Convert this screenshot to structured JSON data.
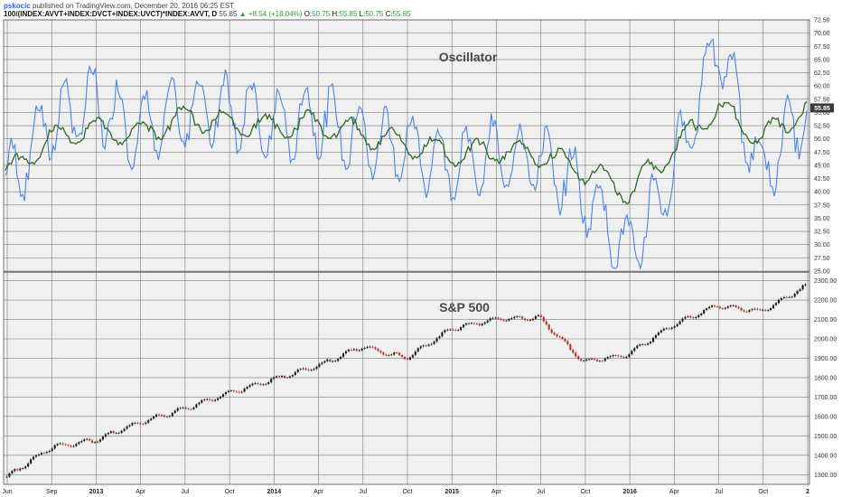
{
  "header": {
    "author": "pskocic",
    "published": "published on TradingView.com, December 20, 2016 06:25 EST",
    "symbol": "100/(INDEX:AVVT+INDEX:DVCT+INDEX:UVCT)*INDEX:AVVT, D",
    "last": "55.85",
    "change": "+8.54 (+18.04%)",
    "o_label": "O:",
    "o_value": "50.75",
    "h_label": "H:",
    "h_value": "55.85",
    "l_label": "L:",
    "l_value": "50.75",
    "c_label": "C:",
    "c_value": "55.85"
  },
  "colors": {
    "background": "#f0f0f0",
    "grid": "#7a7a7a",
    "oscillator": "#4a86e8",
    "average": "#2e6b1f",
    "candle_up": "#1a1a1a",
    "candle_down": "#b0301e",
    "price_badge": "#3a3a3a"
  },
  "chart_data": [
    {
      "type": "line",
      "title": "Oscillator",
      "ylim": [
        25,
        72.5
      ],
      "yticks": [
        "72.50",
        "70.00",
        "67.50",
        "65.00",
        "62.50",
        "60.00",
        "57.50",
        "55.00",
        "52.50",
        "50.00",
        "47.50",
        "45.00",
        "42.50",
        "40.00",
        "37.50",
        "35.00",
        "32.50",
        "30.00",
        "27.50",
        "25.00"
      ],
      "last_value_label": "55.85",
      "x": [
        "Jun 2012",
        "Sep 2012",
        "Jan 2013",
        "Apr 2013",
        "Jul 2013",
        "Oct 2013",
        "Jan 2014",
        "Apr 2014",
        "Jul 2014",
        "Oct 2014",
        "Jan 2015",
        "Apr 2015",
        "Jul 2015",
        "Oct 2015",
        "Jan 2016",
        "Apr 2016",
        "Jul 2016",
        "Oct 2016",
        "Dec 2016"
      ],
      "series": [
        {
          "values": [
            41,
            53,
            57,
            51,
            55,
            56,
            52,
            54,
            50,
            48,
            45,
            47,
            46,
            40,
            28,
            44,
            68,
            43,
            56
          ]
        },
        {
          "values": [
            43,
            50,
            52,
            51,
            54,
            53,
            52,
            53,
            51,
            49,
            47,
            48,
            47,
            44,
            40,
            48,
            56,
            50,
            56
          ]
        }
      ]
    },
    {
      "type": "line",
      "title": "S&P 500",
      "ylim": [
        1250,
        2340
      ],
      "yticks": [
        "2300.00",
        "2200.00",
        "2100.00",
        "2000.00",
        "1900.00",
        "1800.00",
        "1700.00",
        "1600.00",
        "1500.00",
        "1400.00",
        "1300.00"
      ],
      "x": [
        "Jun 2012",
        "Sep 2012",
        "Jan 2013",
        "Apr 2013",
        "Jul 2013",
        "Oct 2013",
        "Jan 2014",
        "Apr 2014",
        "Jul 2014",
        "Oct 2014",
        "Jan 2015",
        "Apr 2015",
        "Jul 2015",
        "Oct 2015",
        "Jan 2016",
        "Apr 2016",
        "Jul 2016",
        "Oct 2016",
        "Dec 2016"
      ],
      "values": [
        1290,
        1440,
        1480,
        1570,
        1640,
        1720,
        1790,
        1860,
        1960,
        1900,
        2050,
        2100,
        2110,
        1880,
        1920,
        2070,
        2170,
        2140,
        2270
      ]
    }
  ],
  "x_axis": {
    "labels": [
      {
        "text": "Jun",
        "bold": false
      },
      {
        "text": "Sep",
        "bold": false
      },
      {
        "text": "2013",
        "bold": true
      },
      {
        "text": "Apr",
        "bold": false
      },
      {
        "text": "Jul",
        "bold": false
      },
      {
        "text": "Oct",
        "bold": false
      },
      {
        "text": "2014",
        "bold": true
      },
      {
        "text": "Apr",
        "bold": false
      },
      {
        "text": "Jul",
        "bold": false
      },
      {
        "text": "Oct",
        "bold": false
      },
      {
        "text": "2015",
        "bold": true
      },
      {
        "text": "Apr",
        "bold": false
      },
      {
        "text": "Jul",
        "bold": false
      },
      {
        "text": "Oct",
        "bold": false
      },
      {
        "text": "2016",
        "bold": true
      },
      {
        "text": "Apr",
        "bold": false
      },
      {
        "text": "Jul",
        "bold": false
      },
      {
        "text": "Oct",
        "bold": false
      },
      {
        "text": "2",
        "bold": true
      }
    ]
  }
}
